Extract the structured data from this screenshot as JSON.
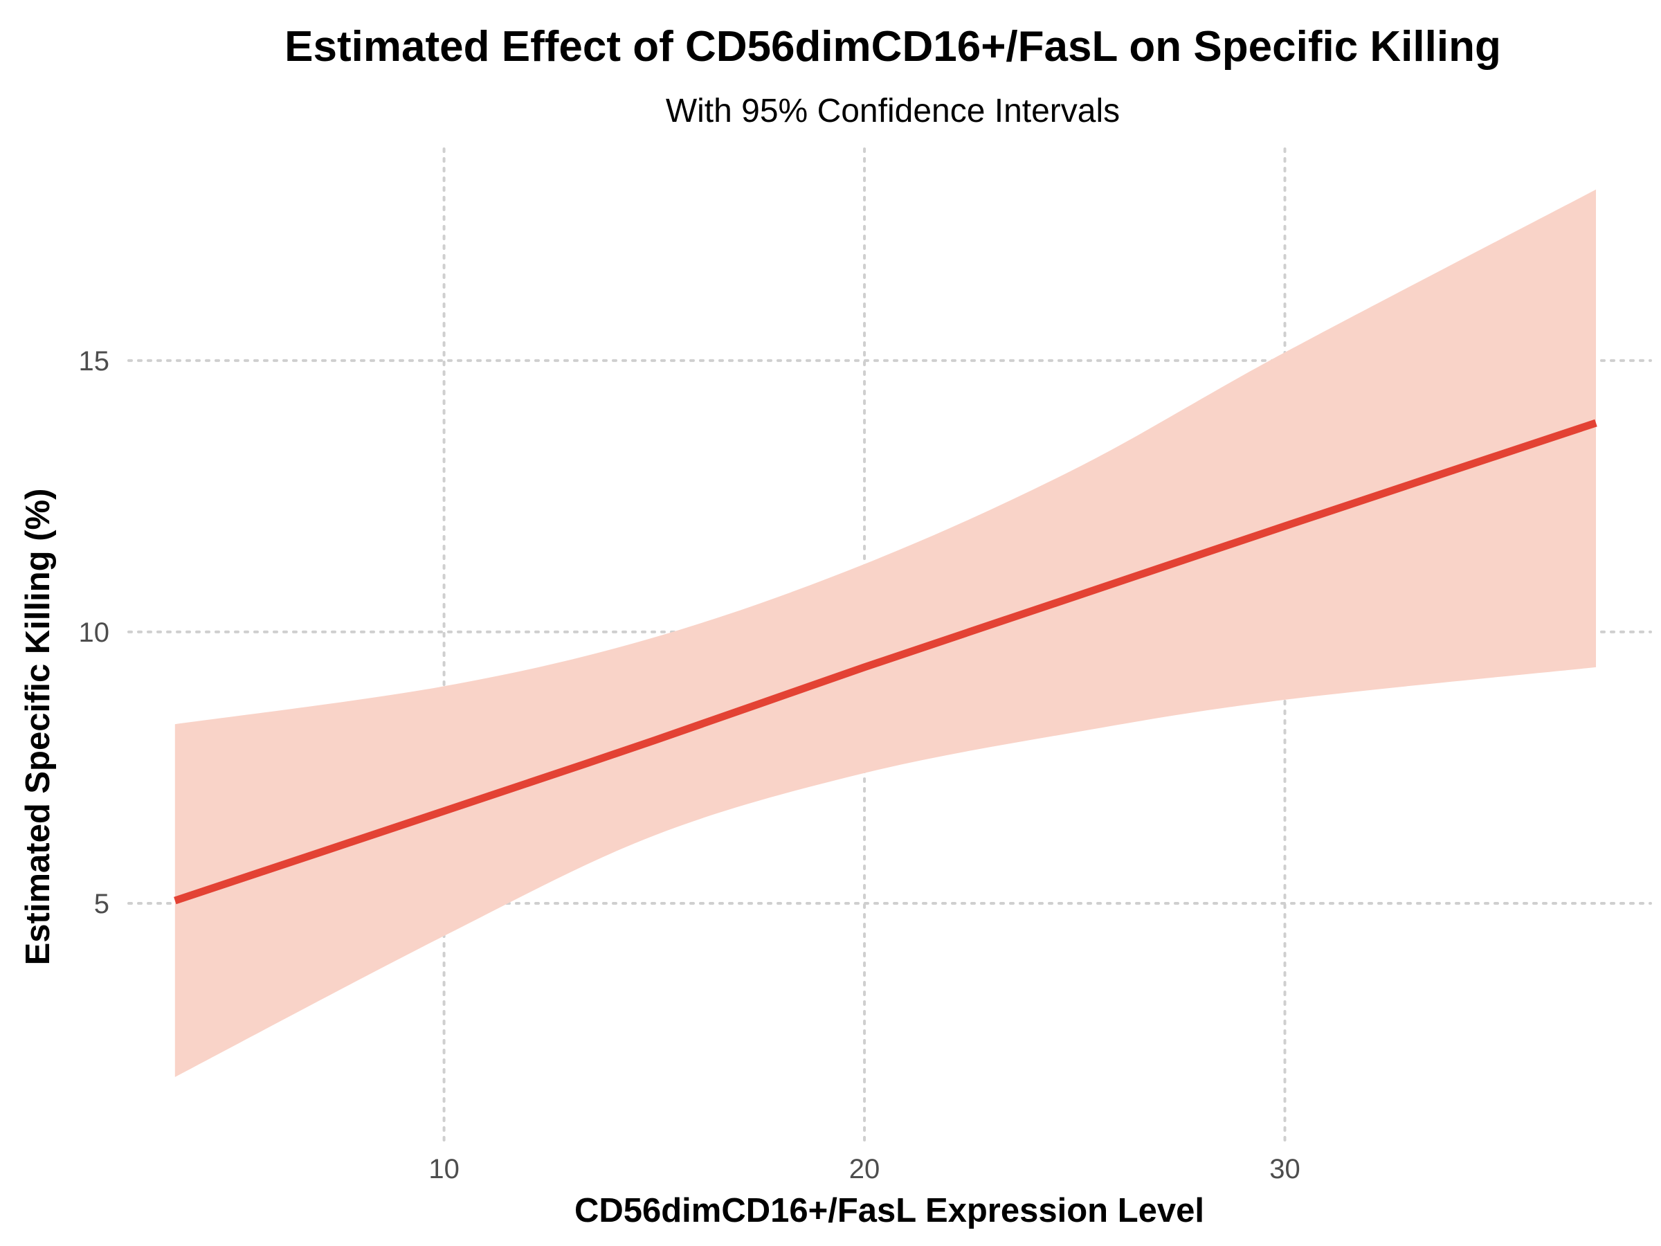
{
  "chart_data": {
    "type": "line",
    "title": "Estimated Effect of CD56dimCD16+/FasL on Specific Killing",
    "subtitle": "With 95% Confidence Intervals",
    "xlabel": "CD56dimCD16+/FasL Expression Level",
    "ylabel": "Estimated Specific Killing (%)",
    "xlim": [
      2.5,
      38.7
    ],
    "ylim": [
      0.6,
      18.9
    ],
    "x_ticks": [
      10,
      20,
      30
    ],
    "y_ticks": [
      5,
      10,
      15
    ],
    "grid": true,
    "colors": {
      "line": "#e34234",
      "ribbon": "#f9d3c8",
      "grid": "#cfcfcf"
    },
    "series": [
      {
        "x": [
          3.6,
          10,
          15,
          20,
          25,
          30,
          37.4
        ],
        "values": [
          5.05,
          6.7,
          8.0,
          9.35,
          10.65,
          11.95,
          13.85
        ],
        "lower": [
          1.8,
          4.4,
          6.25,
          7.4,
          8.15,
          8.75,
          9.35
        ],
        "upper": [
          8.3,
          9.0,
          9.9,
          11.25,
          13.0,
          15.15,
          18.15
        ]
      }
    ]
  }
}
